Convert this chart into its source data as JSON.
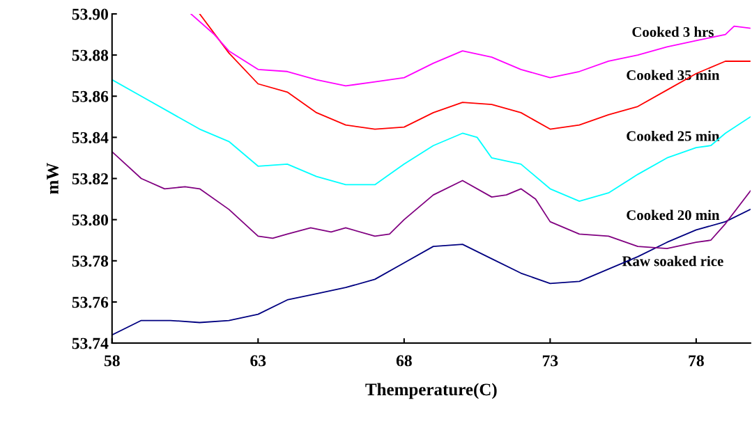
{
  "chart_data": {
    "type": "line",
    "xlabel": "Themperature(C)",
    "ylabel": "mW",
    "xlim": [
      58,
      79.86
    ],
    "ylim": [
      53.74,
      53.9
    ],
    "xticks": [
      58,
      63,
      68,
      73,
      78
    ],
    "yticks": [
      53.74,
      53.76,
      53.78,
      {
        "value": 53.8,
        "label": "53.80"
      },
      53.82,
      53.84,
      53.86,
      53.88,
      {
        "value": 53.9,
        "label": "53.90"
      }
    ],
    "grid": false,
    "legend": false,
    "marker": "none",
    "line_style": "solid",
    "series": [
      {
        "name": "Raw soaked rice",
        "color": "#000080",
        "x": [
          58,
          59,
          60,
          61,
          62,
          63,
          64,
          65,
          66,
          67,
          68,
          69,
          70,
          71,
          72,
          73,
          74,
          75,
          76,
          77,
          78,
          79,
          79.86
        ],
        "values": [
          53.744,
          53.751,
          53.751,
          53.75,
          53.751,
          53.754,
          53.761,
          53.764,
          53.767,
          53.771,
          53.779,
          53.787,
          53.788,
          53.781,
          53.774,
          53.769,
          53.77,
          53.776,
          53.782,
          53.789,
          53.795,
          53.799,
          53.805
        ]
      },
      {
        "name": "Cooked 20 min",
        "color": "#800080",
        "x": [
          58,
          59,
          59.8,
          60.5,
          61,
          62,
          63,
          63.5,
          64,
          64.8,
          65.5,
          66,
          67,
          67.5,
          68,
          69,
          70,
          71,
          71.5,
          72,
          72.5,
          73,
          74,
          75,
          76,
          77,
          78,
          78.5,
          79,
          79.86
        ],
        "values": [
          53.833,
          53.82,
          53.815,
          53.816,
          53.815,
          53.805,
          53.792,
          53.791,
          53.793,
          53.796,
          53.794,
          53.796,
          53.792,
          53.793,
          53.8,
          53.812,
          53.819,
          53.811,
          53.812,
          53.815,
          53.81,
          53.799,
          53.793,
          53.792,
          53.787,
          53.786,
          53.789,
          53.79,
          53.798,
          53.814
        ]
      },
      {
        "name": "Cooked 25 min",
        "color": "#00ffff",
        "x": [
          58,
          59,
          60,
          61,
          62,
          63,
          64,
          65,
          66,
          67,
          68,
          69,
          70,
          70.5,
          71,
          72,
          73,
          74,
          75,
          76,
          77,
          78,
          78.5,
          79,
          79.86
        ],
        "values": [
          53.868,
          53.86,
          53.852,
          53.844,
          53.838,
          53.826,
          53.827,
          53.821,
          53.817,
          53.817,
          53.827,
          53.836,
          53.842,
          53.84,
          53.83,
          53.827,
          53.815,
          53.809,
          53.813,
          53.822,
          53.83,
          53.835,
          53.836,
          53.842,
          53.85
        ]
      },
      {
        "name": "Cooked 35 min",
        "color": "#ff0000",
        "x": [
          61,
          62,
          63,
          64,
          65,
          66,
          67,
          68,
          69,
          70,
          71,
          72,
          73,
          74,
          75,
          76,
          77,
          78,
          79,
          79.86
        ],
        "values": [
          53.9,
          53.881,
          53.866,
          53.862,
          53.852,
          53.846,
          53.844,
          53.845,
          53.852,
          53.857,
          53.856,
          53.852,
          53.844,
          53.846,
          53.851,
          53.855,
          53.863,
          53.871,
          53.877,
          53.877
        ]
      },
      {
        "name": "Cooked 3 hrs",
        "color": "#ff00ff",
        "x": [
          60.7,
          61.5,
          62,
          63,
          64,
          65,
          66,
          67,
          68,
          69,
          70,
          71,
          72,
          73,
          74,
          75,
          76,
          77,
          78,
          79,
          79.3,
          79.86
        ],
        "values": [
          53.9,
          53.89,
          53.882,
          53.873,
          53.872,
          53.868,
          53.865,
          53.867,
          53.869,
          53.876,
          53.882,
          53.879,
          53.873,
          53.869,
          53.872,
          53.877,
          53.88,
          53.884,
          53.887,
          53.89,
          53.894,
          53.893
        ]
      }
    ]
  }
}
